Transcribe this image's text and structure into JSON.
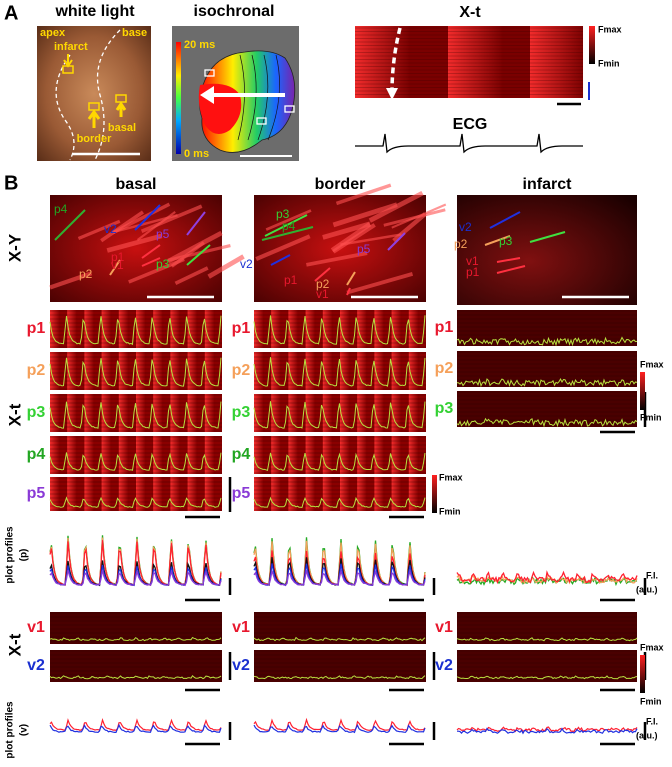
{
  "panel_a": {
    "label": "A",
    "white_light": {
      "title": "white light",
      "apex": "apex",
      "base": "base",
      "infarct": "infarct",
      "border": "border",
      "basal": "basal"
    },
    "isochronal": {
      "title": "isochronal",
      "max": "20 ms",
      "min": "0 ms"
    },
    "xt": {
      "title": "X-t",
      "fmax": "Fmax",
      "fmin": "Fmin"
    },
    "ecg": {
      "title": "ECG"
    }
  },
  "panel_b": {
    "label": "B",
    "columns": [
      {
        "title": "basal",
        "xy_labels": [
          "p4",
          "v2",
          "p5",
          "p1",
          "p2",
          "v1",
          "p3"
        ],
        "p_rows": [
          "p1",
          "p2",
          "p3",
          "p4",
          "p5"
        ],
        "v_rows": [
          "v1",
          "v2"
        ]
      },
      {
        "title": "border",
        "xy_labels": [
          "p3",
          "p4",
          "v2",
          "p5",
          "p1",
          "p2",
          "v1"
        ],
        "p_rows": [
          "p1",
          "p2",
          "p3",
          "p4",
          "p5"
        ],
        "v_rows": [
          "v1",
          "v2"
        ]
      },
      {
        "title": "infarct",
        "xy_labels": [
          "v2",
          "p2",
          "p3",
          "v1",
          "p1"
        ],
        "p_rows": [
          "p1",
          "p2",
          "p3"
        ],
        "v_rows": [
          "v1",
          "v2"
        ]
      }
    ],
    "row_labels": {
      "xy": "X-Y",
      "xt_p": "X-t",
      "plot_p": "plot profiles",
      "plot_p_sub": "(p)",
      "xt_v": "X-t",
      "plot_v": "plot profiles",
      "plot_v_sub": "(v)"
    },
    "scale_p": {
      "fmax": "Fmax",
      "fmin": "Fmin"
    },
    "scale_p3": {
      "fmax": "Fmax",
      "fmin": "Fmin"
    },
    "scale_v": {
      "fmax": "Fmax",
      "fmin": "Fmin"
    },
    "fi_p": {
      "line1": "F.I.",
      "line2": "(a.u.)"
    },
    "fi_v": {
      "line1": "F.I.",
      "line2": "(a.u.)"
    }
  }
}
